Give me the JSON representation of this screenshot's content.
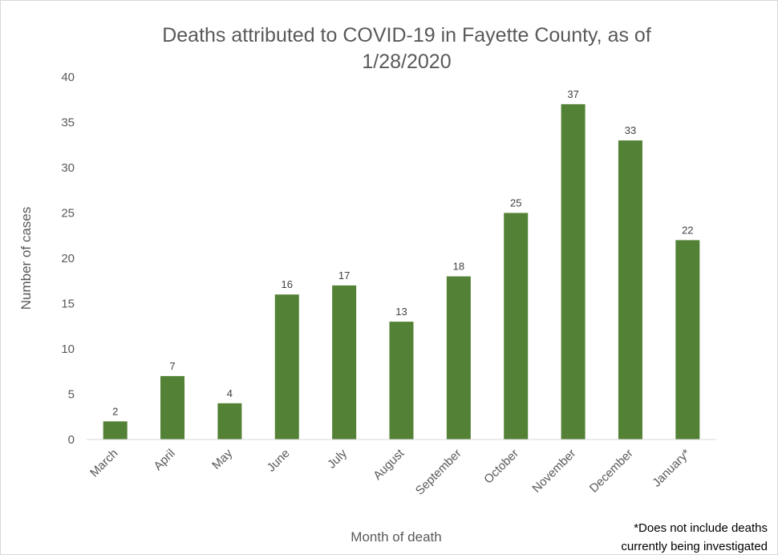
{
  "chart_data": {
    "type": "bar",
    "title_lines": [
      "Deaths attributed to COVID-19 in Fayette County, as of",
      "1/28/2020"
    ],
    "xlabel": "Month of death",
    "ylabel": "Number of cases",
    "categories": [
      "March",
      "April",
      "May",
      "June",
      "July",
      "August",
      "September",
      "October",
      "November",
      "December",
      "January*"
    ],
    "values": [
      2,
      7,
      4,
      16,
      17,
      13,
      18,
      25,
      37,
      33,
      22
    ],
    "ylim": [
      0,
      40
    ],
    "yticks": [
      "0",
      "5",
      "10",
      "15",
      "20",
      "25",
      "30",
      "35",
      "40"
    ],
    "grid": false,
    "legend": "none",
    "data_labels": true,
    "bar_color": "#538135",
    "footnote_lines": [
      "*Does not include deaths",
      "currently being investigated"
    ]
  }
}
